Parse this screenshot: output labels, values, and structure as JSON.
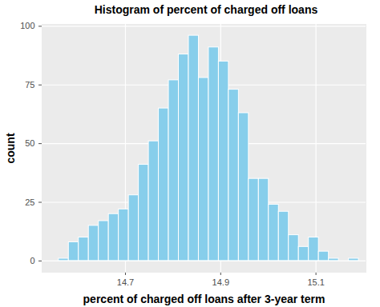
{
  "chart_data": {
    "type": "histogram",
    "title": "Histogram of percent of charged off loans",
    "x_label": "percent of charged off loans after 3-year term",
    "y_label": "count",
    "bins": [
      14.56,
      14.581,
      14.602,
      14.623,
      14.644,
      14.665,
      14.686,
      14.707,
      14.728,
      14.749,
      14.77,
      14.791,
      14.812,
      14.833,
      14.854,
      14.875,
      14.896,
      14.917,
      14.938,
      14.959,
      14.98,
      15.001,
      15.022,
      15.043,
      15.064,
      15.085,
      15.106,
      15.127,
      15.148,
      15.169,
      15.19
    ],
    "values": [
      1,
      8,
      10,
      15,
      17,
      20,
      22,
      28,
      41,
      51,
      65,
      77,
      88,
      96,
      78,
      91,
      85,
      73,
      63,
      35,
      35,
      24,
      21,
      11,
      6,
      10,
      4,
      1,
      0,
      1
    ],
    "color": "#87CEEB",
    "xlim": [
      14.525,
      15.205
    ],
    "xticks": [
      14.7,
      14.9,
      15.1
    ],
    "ylim": [
      -4.8,
      100.8
    ],
    "yticks": [
      0,
      25,
      50,
      75,
      100
    ],
    "grid": true
  }
}
